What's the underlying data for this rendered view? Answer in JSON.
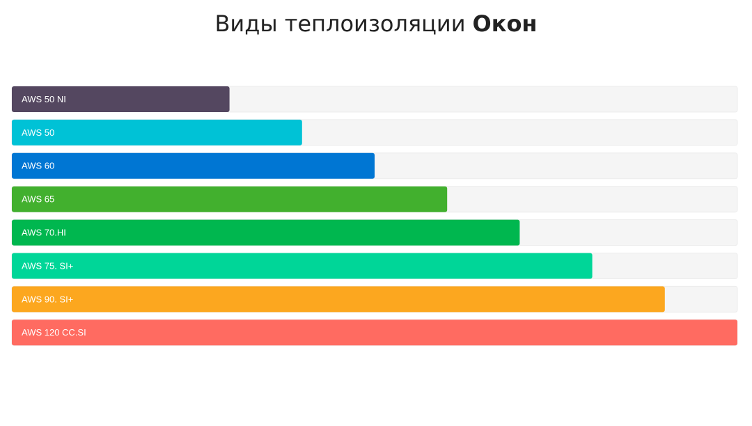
{
  "chart_data": {
    "type": "bar",
    "orientation": "horizontal",
    "title": "Виды теплоизоляции",
    "title_emphasis": "Окон",
    "categories": [
      "AWS 50 NI",
      "AWS 50",
      "AWS 60",
      "AWS 65",
      "AWS 70.HI",
      "AWS 75. SI+",
      "AWS 90. SI+",
      "AWS 120 CC.SI"
    ],
    "values": [
      30,
      40,
      50,
      60,
      70,
      80,
      90,
      100
    ],
    "colors": [
      "#544760",
      "#00c2d6",
      "#0076d3",
      "#42b02e",
      "#00b74f",
      "#00d698",
      "#fca71f",
      "#ff6b61"
    ],
    "xlim": [
      0,
      100
    ]
  }
}
